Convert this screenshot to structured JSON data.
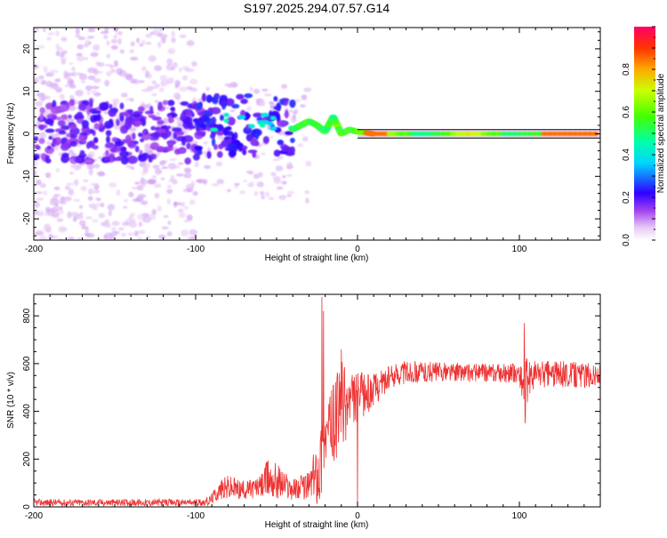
{
  "title": "S197.2025.294.07.57.G14",
  "chart_data": [
    {
      "type": "heatmap",
      "xlabel": "Height of straight line (km)",
      "ylabel": "Frequency (Hz)",
      "xlim": [
        -200,
        150
      ],
      "ylim": [
        -25,
        25
      ],
      "x_ticks": [
        -200,
        -100,
        0,
        100
      ],
      "y_ticks": [
        -20,
        -10,
        0,
        10,
        20
      ],
      "colorbar": {
        "label": "Normalized spectral amplitude",
        "range": [
          0,
          1
        ],
        "ticks": [
          0.0,
          0.2,
          0.4,
          0.6,
          0.8
        ]
      },
      "ridge": {
        "description_values": "dominant frequency track",
        "x": [
          -40,
          -35,
          -30,
          -25,
          -20,
          -15,
          -10,
          -5,
          0,
          10,
          50,
          100,
          150
        ],
        "y": [
          1,
          2,
          3,
          2,
          0.5,
          4,
          0,
          1,
          0.5,
          0,
          0,
          0,
          0
        ]
      }
    },
    {
      "type": "line",
      "xlabel": "Height of straight line (km)",
      "ylabel": "SNR (10 * v/v)",
      "xlim": [
        -200,
        150
      ],
      "ylim": [
        0,
        890
      ],
      "x_ticks": [
        -200,
        -100,
        0,
        100
      ],
      "y_ticks": [
        0,
        200,
        400,
        600,
        800
      ],
      "color": "#ee3333",
      "envelope": {
        "x": [
          -200,
          -100,
          -92,
          -85,
          -80,
          -70,
          -60,
          -55,
          -50,
          -40,
          -30,
          -25,
          -22,
          -20,
          -15,
          -10,
          -5,
          0,
          5,
          10,
          15,
          20,
          25,
          30,
          40,
          60,
          80,
          100,
          103,
          106,
          110,
          130,
          150
        ],
        "base": [
          18,
          18,
          22,
          70,
          80,
          70,
          85,
          120,
          110,
          75,
          90,
          150,
          200,
          300,
          350,
          420,
          440,
          460,
          470,
          490,
          520,
          540,
          560,
          565,
          565,
          565,
          560,
          560,
          500,
          540,
          560,
          555,
          550
        ],
        "amp": [
          15,
          15,
          18,
          40,
          55,
          40,
          45,
          90,
          80,
          45,
          60,
          140,
          200,
          130,
          160,
          200,
          130,
          110,
          90,
          70,
          60,
          50,
          50,
          50,
          45,
          40,
          40,
          40,
          150,
          70,
          60,
          55,
          50
        ]
      },
      "spikes": [
        {
          "x": -22,
          "y": 880
        },
        {
          "x": -21,
          "y": 820
        },
        {
          "x": -10,
          "y": 660
        },
        {
          "x": 0,
          "y": 5
        },
        {
          "x": 103,
          "y": 770
        },
        {
          "x": 103.5,
          "y": 350
        }
      ]
    }
  ]
}
